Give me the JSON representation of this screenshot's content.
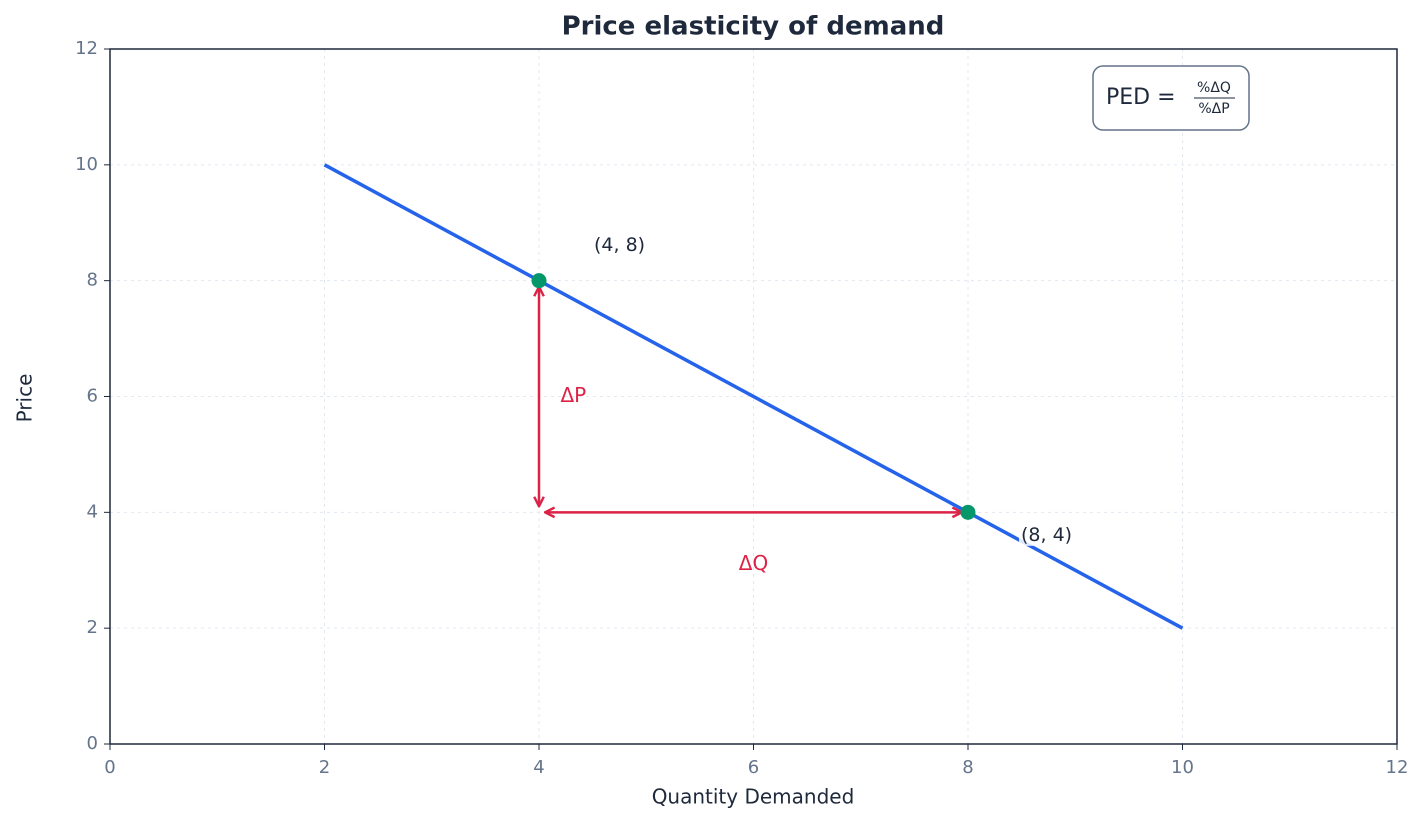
{
  "chart_data": {
    "type": "line",
    "title": "Price elasticity of demand",
    "x_label": "Quantity Demanded",
    "y_label": "Price",
    "xlim": [
      0,
      12
    ],
    "ylim": [
      0,
      12
    ],
    "xticks": [
      0,
      2,
      4,
      6,
      8,
      10,
      12
    ],
    "yticks": [
      0,
      2,
      4,
      6,
      8,
      10,
      12
    ],
    "grid": true,
    "series": [
      {
        "color": "#2563eb",
        "x": [
          2,
          10
        ],
        "values": [
          10,
          2
        ]
      }
    ],
    "points": {
      "color": "#059669",
      "x": [
        4,
        8
      ],
      "values": [
        8,
        4
      ],
      "labels": [
        "(4, 8)",
        "(8, 4)"
      ]
    },
    "arrows": [
      {
        "color": "#dc2347",
        "from": [
          4,
          4
        ],
        "to": [
          4,
          8
        ],
        "label": "ΔP",
        "label_at": [
          4.2,
          6
        ]
      },
      {
        "color": "#dc2347",
        "from": [
          4,
          4
        ],
        "to": [
          8,
          4
        ],
        "label": "ΔQ",
        "label_at": [
          6,
          3.1
        ]
      }
    ],
    "formula": {
      "lhs": "PED =",
      "numerator": "%ΔQ",
      "denominator": "%ΔP"
    }
  }
}
